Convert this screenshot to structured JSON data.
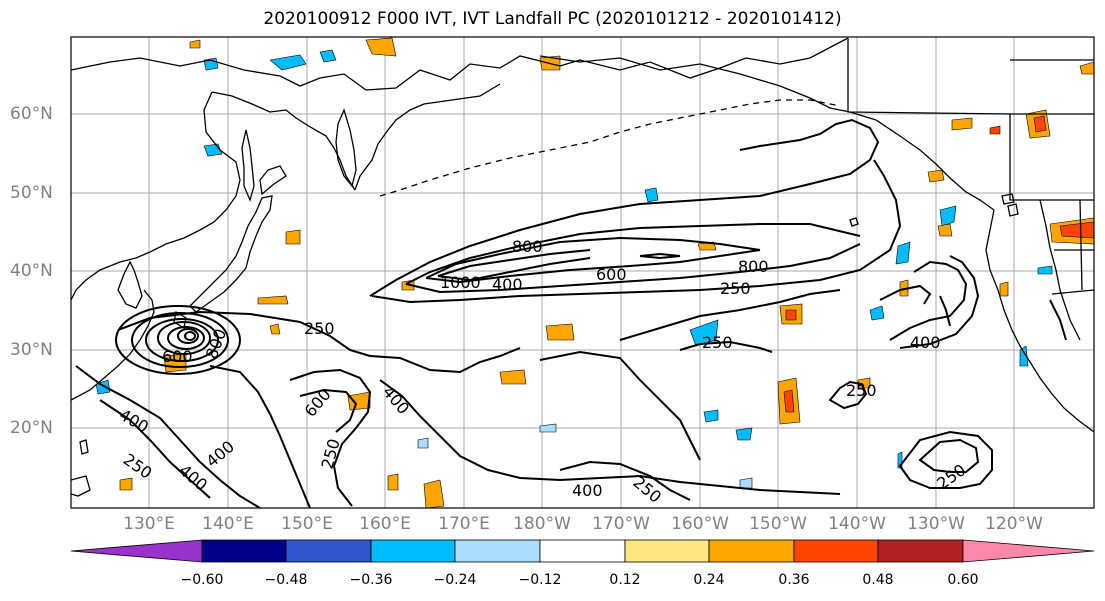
{
  "title": "2020100912 F000 IVT, IVT Landfall PC (2020101212 - 2020101412)",
  "lat_labels": [
    "60°N",
    "50°N",
    "40°N",
    "30°N",
    "20°N"
  ],
  "lon_labels": [
    "130°E",
    "140°E",
    "150°E",
    "160°E",
    "170°E",
    "180°W",
    "170°W",
    "160°W",
    "150°W",
    "140°W",
    "130°W",
    "120°W"
  ],
  "contour_labels": [
    "800",
    "1000",
    "400",
    "600",
    "800",
    "250",
    "250",
    "250",
    "800",
    "600",
    "400",
    "400",
    "600",
    "250",
    "400",
    "400",
    "250",
    "400",
    "250",
    "400",
    "250",
    "250"
  ],
  "colorbar": {
    "ticks": [
      "−0.60",
      "−0.48",
      "−0.36",
      "−0.24",
      "−0.12",
      "0.12",
      "0.24",
      "0.36",
      "0.48",
      "0.60"
    ],
    "colors": [
      "#9933cc",
      "#000088",
      "#3355cc",
      "#00bbff",
      "#aaddff",
      "#ffffff",
      "#ffe680",
      "#ffa500",
      "#ff4500",
      "#b22222",
      "#ff88aa"
    ]
  }
}
